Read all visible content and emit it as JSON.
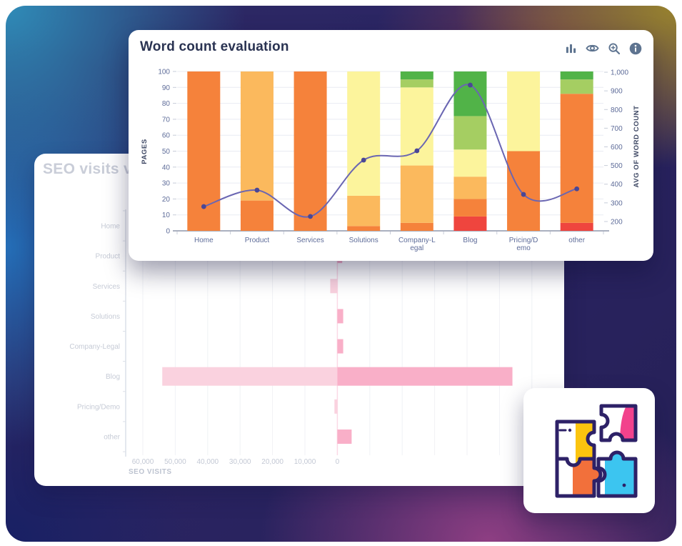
{
  "background": {
    "base": "#2A2462",
    "top_left_blue": "#2F8CB8",
    "left_blue": "#2474BE",
    "bottom_left_navy": "#172064",
    "top_right_gold": "#9E882B",
    "top_right_maroon": "#763A52",
    "bottom_magenta": "#944085"
  },
  "front_card": {
    "title": "Word count evaluation",
    "toolbar_icon_color": "#5E7490",
    "toolbar_icons": [
      {
        "name": "bar-chart-icon"
      },
      {
        "name": "eye-icon"
      },
      {
        "name": "zoom-in-icon"
      },
      {
        "name": "info-icon"
      }
    ],
    "chart_data": {
      "type": "bar",
      "subtype": "stacked-bars-with-line-dual-axis",
      "grid": true,
      "categories": [
        "Home",
        "Product",
        "Services",
        "Solutions",
        "Company-Legal",
        "Blog",
        "Pricing/Demo",
        "other"
      ],
      "x_tick_lines": [
        [
          "Home"
        ],
        [
          "Product"
        ],
        [
          "Services"
        ],
        [
          "Solutions"
        ],
        [
          "Company-L",
          "egal"
        ],
        [
          "Blog"
        ],
        [
          "Pricing/D",
          "emo"
        ],
        [
          "other"
        ]
      ],
      "bar_series": [
        {
          "name": "red",
          "color": "#EF453E",
          "values": [
            0,
            0,
            0,
            0,
            0,
            9,
            0,
            5
          ]
        },
        {
          "name": "orange",
          "color": "#F5823B",
          "values": [
            100,
            19,
            100,
            3,
            5,
            11,
            50,
            81
          ]
        },
        {
          "name": "light-orange",
          "color": "#FBB95D",
          "values": [
            0,
            81,
            0,
            19,
            36,
            14,
            0,
            0
          ]
        },
        {
          "name": "yellow",
          "color": "#FCF49C",
          "values": [
            0,
            0,
            0,
            78,
            49,
            17,
            50,
            0
          ]
        },
        {
          "name": "light-green",
          "color": "#A5CE62",
          "values": [
            0,
            0,
            0,
            0,
            5,
            21,
            0,
            9
          ]
        },
        {
          "name": "green",
          "color": "#51B348",
          "values": [
            0,
            0,
            0,
            0,
            5,
            28,
            0,
            5
          ]
        }
      ],
      "line_series": {
        "name": "avg-of-word-count",
        "color": "#6A66B2",
        "point_color": "#4A4795",
        "values": [
          280,
          368,
          227,
          529,
          579,
          931,
          345,
          375
        ]
      },
      "y_left": {
        "label": "PAGES",
        "min": 0,
        "max": 100,
        "ticks": [
          0,
          10,
          20,
          30,
          40,
          50,
          60,
          70,
          80,
          90,
          100
        ]
      },
      "y_right": {
        "label": "AVG OF WORD COUNT",
        "min": 150,
        "max": 1004,
        "ticks": [
          200,
          300,
          400,
          500,
          600,
          700,
          800,
          900,
          1000
        ],
        "tick_labels": [
          "200",
          "300",
          "400",
          "500",
          "600",
          "700",
          "800",
          "900",
          "1,000"
        ]
      },
      "tick_color": "#5E6C99",
      "axis_title_color": "#3D4763",
      "gridline_color": "#E9EBF2",
      "axis_line_color": "#AAB0BF"
    }
  },
  "back_card": {
    "title": "SEO visits vs a",
    "title_color": "#C9CDD8",
    "chart_data": {
      "type": "bar",
      "subtype": "horizontal-bidirectional",
      "grid": true,
      "categories": [
        "Home",
        "Product",
        "Services",
        "Solutions",
        "Company-Legal",
        "Blog",
        "Pricing/Demo",
        "other"
      ],
      "xlabel": "SEO VISITS",
      "x_tick_values": [
        60000,
        50000,
        40000,
        30000,
        20000,
        10000,
        0
      ],
      "x_tick_labels": [
        "60,000",
        "50,000",
        "40,000",
        "30,000",
        "20,000",
        "10,000",
        "0"
      ],
      "series": [
        {
          "name": "seo-visits-left",
          "color": "#FAD2DF",
          "direction": "left",
          "values": [
            0,
            0,
            2200,
            0,
            0,
            54000,
            900,
            0
          ]
        },
        {
          "name": "compare-right",
          "color": "#F9AFC8",
          "direction": "right",
          "values": [
            0,
            1500,
            0,
            1800,
            1800,
            54000,
            0,
            4400
          ]
        }
      ],
      "zero_line_color": "#FBD9E6",
      "gridline_color": "#F0F2F6",
      "axis_line_color": "#DCE0E8",
      "tick_color": "#C3C8D4",
      "label_color": "#C6CBD6",
      "xlabel_color": "#BDC3D0"
    }
  },
  "puzzle_card": {
    "name": "puzzle-illustration",
    "colors": {
      "outline": "#2D2167",
      "yellow": "#FBC40F",
      "pink": "#F2428C",
      "orange": "#F2703B",
      "cyan": "#3CC5F0",
      "white": "#FFFFFF"
    }
  }
}
